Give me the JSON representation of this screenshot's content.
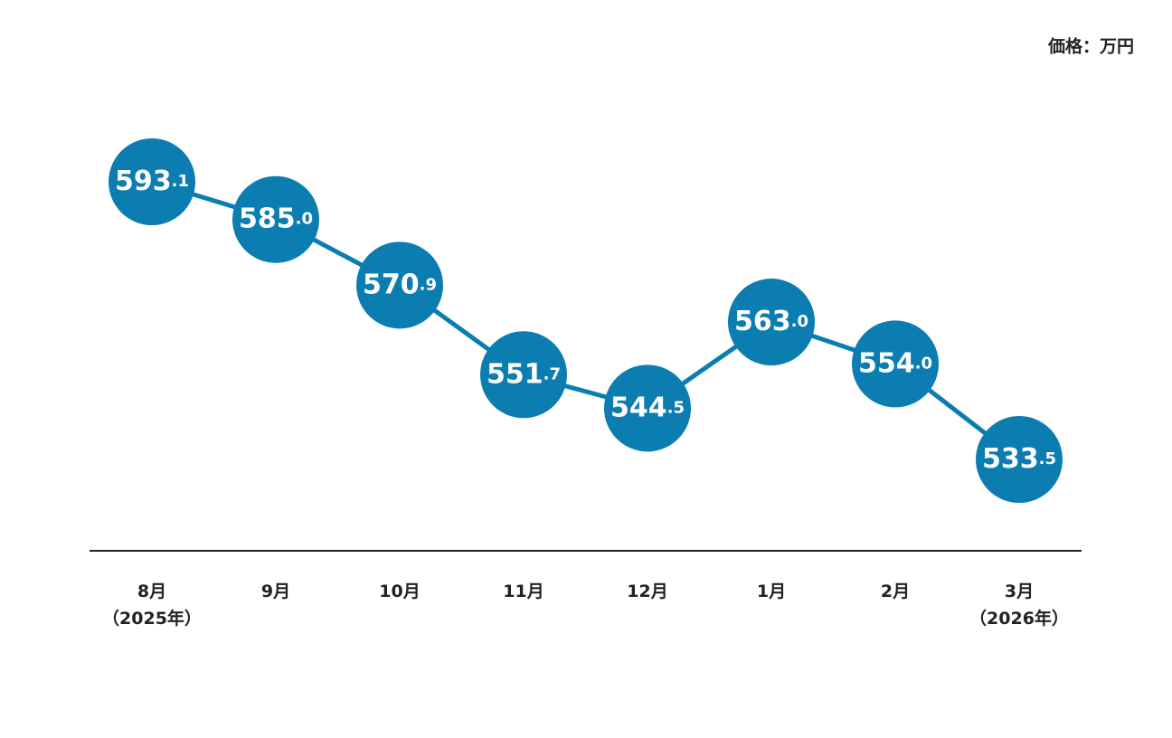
{
  "chart_data": {
    "type": "line",
    "unit_label": "価格：万円",
    "categories": [
      "8月（2025年）",
      "9月",
      "10月",
      "11月",
      "12月",
      "1月",
      "2月",
      "3月（2026年）"
    ],
    "values": [
      593.1,
      585.0,
      570.9,
      551.7,
      544.5,
      563.0,
      554.0,
      533.5
    ],
    "value_labels": [
      "593.1",
      "585.0",
      "570.9",
      "551.7",
      "544.5",
      "563.0",
      "554.0",
      "533.5"
    ],
    "color": "#0b7db1"
  }
}
